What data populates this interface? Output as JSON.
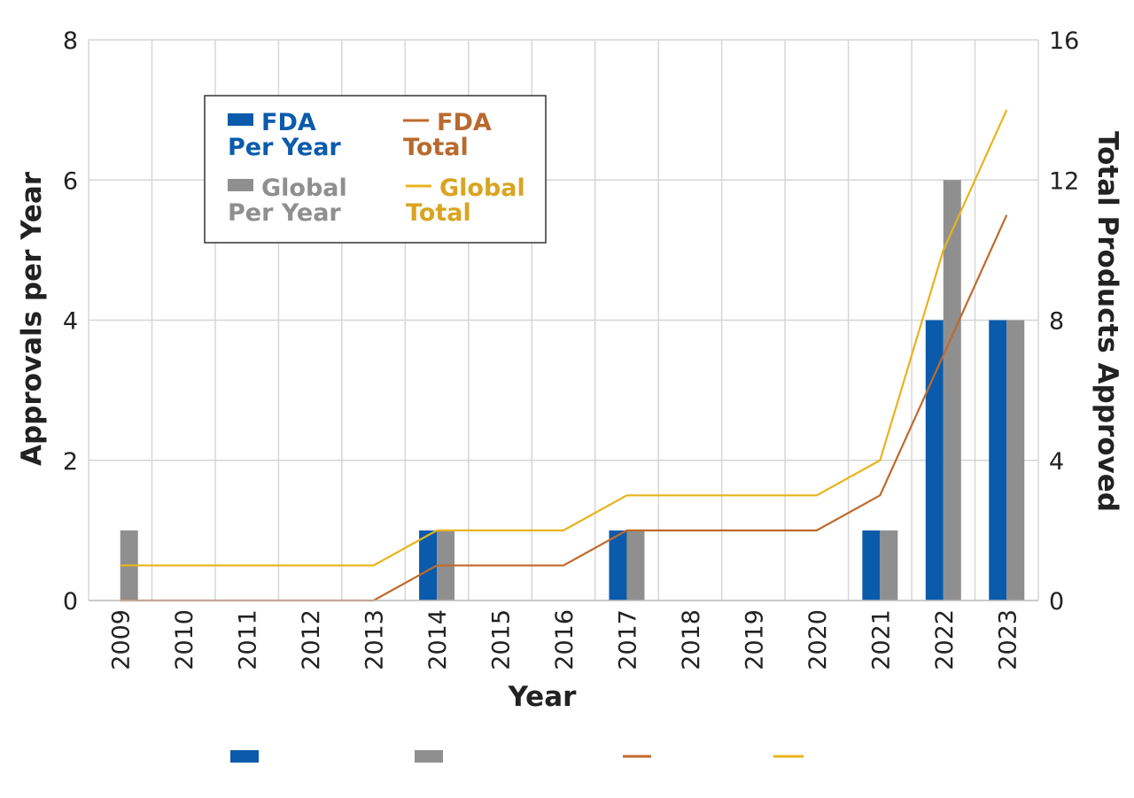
{
  "chart_data": {
    "type": "bar",
    "categories": [
      "2009",
      "2010",
      "2011",
      "2012",
      "2013",
      "2014",
      "2015",
      "2016",
      "2017",
      "2018",
      "2019",
      "2020",
      "2021",
      "2022",
      "2023"
    ],
    "xlabel": "Year",
    "ylabel": "Approvals per Year",
    "y2label": "Total Products Approved",
    "ylim": [
      0,
      8
    ],
    "y2lim": [
      0,
      16
    ],
    "yticks": [
      "0",
      "2",
      "4",
      "6",
      "8"
    ],
    "y2ticks": [
      "0",
      "4",
      "8",
      "12",
      "16"
    ],
    "grid": true,
    "legend_position": "top-left",
    "series": [
      {
        "name": "FDA Per Year",
        "name_line1": "FDA",
        "name_line2": "Per Year",
        "type": "bar",
        "axis": "left",
        "color": "#0a5bab",
        "values": [
          0,
          0,
          0,
          0,
          0,
          1,
          0,
          0,
          1,
          0,
          0,
          0,
          1,
          4,
          4
        ]
      },
      {
        "name": "Global Per Year",
        "name_line1": "Global",
        "name_line2": "Per Year",
        "type": "bar",
        "axis": "left",
        "color": "#8f8f8f",
        "values": [
          1,
          0,
          0,
          0,
          0,
          1,
          0,
          0,
          1,
          0,
          0,
          0,
          1,
          6,
          4
        ]
      },
      {
        "name": "FDA Total",
        "name_line1": "FDA",
        "name_line2": "Total",
        "type": "line",
        "axis": "right",
        "color": "#c06a2b",
        "values": [
          0,
          0,
          0,
          0,
          0,
          1,
          1,
          1,
          2,
          2,
          2,
          2,
          3,
          7,
          11
        ]
      },
      {
        "name": "Global Total",
        "name_line1": "Global",
        "name_line2": "Total",
        "type": "line",
        "axis": "right",
        "color": "#e8b41c",
        "values": [
          1,
          1,
          1,
          1,
          1,
          2,
          2,
          2,
          3,
          3,
          3,
          3,
          4,
          10,
          14
        ]
      }
    ],
    "legend_text_colors": {
      "FDA Per Year": "#0a5bab",
      "Global Per Year": "#8f8f8f",
      "FDA Total": "#b86a2e",
      "Global Total": "#d9a520"
    }
  }
}
